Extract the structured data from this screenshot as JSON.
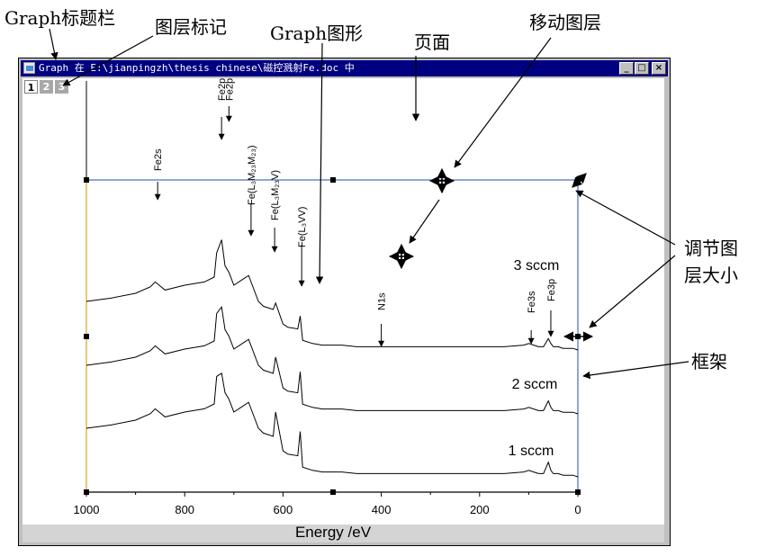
{
  "annotations": {
    "graph_title_bar": "Graph标题栏",
    "layer_marker": "图层标记",
    "graph_figure": "Graph图形",
    "page": "页面",
    "move_layer": "移动图层",
    "resize_layer_line1": "调节图",
    "resize_layer_line2": "层大小",
    "frame": "框架"
  },
  "window": {
    "title": "Graph 在 E:\\jianpingzh\\thesis chinese\\磁控溅射Fe.doc 中",
    "minimize_symbol": "_",
    "maximize_symbol": "□",
    "close_symbol": "×",
    "layer_tabs": [
      "1",
      "2",
      "3"
    ]
  },
  "colors": {
    "titlebar": "#000080",
    "layer_frame": "#1f4fa8",
    "left_axis": "#e0a020",
    "spectrum": "#000000"
  },
  "icons": {
    "move_cursor": "four-way-arrow-icon",
    "resize_handle": "diagonal-resize-icon",
    "horizontal_resize": "horizontal-resize-icon"
  },
  "chart_data": {
    "type": "line",
    "title": "",
    "xlabel": "Energy /eV",
    "ylabel": "",
    "xlim": [
      1000,
      0
    ],
    "x_reversed": true,
    "x_ticks": [
      1000,
      800,
      600,
      400,
      200,
      0
    ],
    "grid": false,
    "series": [
      {
        "name": "3 sccm",
        "x": [
          1000,
          950,
          900,
          870,
          860,
          840,
          800,
          760,
          740,
          735,
          725,
          718,
          710,
          700,
          680,
          670,
          650,
          640,
          620,
          615,
          600,
          590,
          570,
          565,
          560,
          540,
          520,
          500,
          480,
          450,
          420,
          400,
          350,
          300,
          250,
          200,
          150,
          110,
          100,
          90,
          80,
          70,
          60,
          55,
          50,
          40,
          30,
          20,
          10,
          0
        ],
        "y": [
          30,
          32,
          35,
          39,
          42,
          37,
          40,
          42,
          45,
          60,
          68,
          52,
          48,
          40,
          44,
          46,
          30,
          27,
          25,
          29,
          16,
          14,
          13,
          21,
          6,
          4,
          3,
          3,
          3,
          2,
          2,
          2,
          2,
          2,
          2,
          2,
          2,
          3,
          4,
          3,
          2,
          2,
          7,
          4,
          2,
          2,
          1,
          1,
          1,
          0
        ]
      },
      {
        "name": "2 sccm",
        "x": [
          1000,
          950,
          900,
          870,
          860,
          840,
          800,
          760,
          740,
          735,
          725,
          718,
          710,
          700,
          680,
          670,
          650,
          640,
          620,
          615,
          600,
          590,
          570,
          565,
          560,
          540,
          520,
          500,
          480,
          450,
          420,
          400,
          350,
          300,
          250,
          200,
          150,
          110,
          100,
          90,
          80,
          70,
          60,
          55,
          50,
          40,
          30,
          20,
          10,
          0
        ],
        "y": [
          30,
          32,
          35,
          39,
          42,
          37,
          40,
          42,
          45,
          62,
          66,
          52,
          48,
          40,
          44,
          46,
          30,
          27,
          25,
          35,
          16,
          14,
          13,
          26,
          6,
          4,
          3,
          3,
          3,
          2,
          2,
          2,
          2,
          2,
          2,
          2,
          2,
          3,
          4,
          3,
          2,
          2,
          8,
          4,
          2,
          2,
          1,
          1,
          1,
          0
        ]
      },
      {
        "name": "1 sccm",
        "x": [
          1000,
          950,
          900,
          870,
          860,
          840,
          800,
          760,
          740,
          735,
          725,
          718,
          710,
          700,
          680,
          670,
          650,
          640,
          620,
          615,
          600,
          590,
          570,
          565,
          560,
          540,
          520,
          500,
          480,
          450,
          420,
          400,
          350,
          300,
          250,
          200,
          150,
          110,
          100,
          90,
          80,
          70,
          60,
          55,
          50,
          40,
          30,
          20,
          10,
          0
        ],
        "y": [
          30,
          32,
          35,
          39,
          42,
          37,
          40,
          42,
          45,
          62,
          64,
          52,
          48,
          40,
          44,
          46,
          30,
          27,
          25,
          40,
          16,
          14,
          13,
          28,
          6,
          4,
          3,
          3,
          3,
          2,
          2,
          2,
          2,
          2,
          2,
          2,
          2,
          3,
          4,
          3,
          2,
          2,
          9,
          4,
          2,
          2,
          1,
          1,
          1,
          0
        ]
      }
    ],
    "peak_labels": [
      {
        "text": "Fe2s",
        "x": 855
      },
      {
        "text": "Fe2p",
        "x": 725
      },
      {
        "text": "Fe2p",
        "x": 710
      },
      {
        "text": "Fe(L₃M₂₃M₂₃)",
        "x": 665
      },
      {
        "text": "Fe(L₃M₂₃V)",
        "x": 617
      },
      {
        "text": "Fe(L₃VV)",
        "x": 562
      },
      {
        "text": "N1s",
        "x": 400
      },
      {
        "text": "Fe3s",
        "x": 95
      },
      {
        "text": "Fe3p",
        "x": 55
      }
    ],
    "annotations": [
      "3 sccm",
      "2 sccm",
      "1 sccm"
    ]
  }
}
